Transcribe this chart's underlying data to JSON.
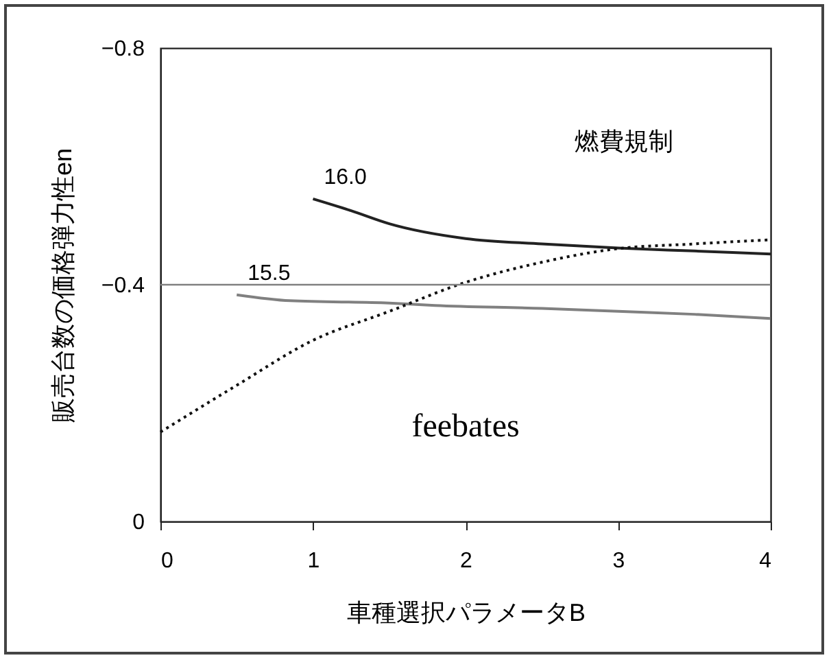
{
  "chart_data": {
    "type": "line",
    "xlabel": "車種選択パラメータB",
    "ylabel": "販売台数の価格弾力性en",
    "xlim": [
      0,
      4
    ],
    "xticks": [
      0,
      1,
      2,
      3,
      4
    ],
    "ylim": [
      0,
      -0.8
    ],
    "yticks": [
      {
        "value": -0.8,
        "label": "−0.8"
      },
      {
        "value": -0.4,
        "label": "−0.4"
      },
      {
        "value": 0,
        "label": "0"
      }
    ],
    "grid": false,
    "legend": false,
    "series": [
      {
        "name": "16.0",
        "color": "#222222",
        "line_style": "solid",
        "x": [
          1,
          1.25,
          1.5,
          2,
          2.5,
          3,
          3.5,
          4
        ],
        "values": [
          -0.545,
          -0.525,
          -0.503,
          -0.478,
          -0.469,
          -0.462,
          -0.457,
          -0.452
        ]
      },
      {
        "name": "15.5",
        "color": "#808080",
        "line_style": "solid",
        "x": [
          0.5,
          0.85,
          1.5,
          1.8,
          2.5,
          3,
          3.5,
          4
        ],
        "values": [
          -0.383,
          -0.373,
          -0.369,
          -0.365,
          -0.36,
          -0.355,
          -0.35,
          -0.343
        ]
      },
      {
        "color": "#111111",
        "line_style": "dotted",
        "x": [
          0,
          0.5,
          1,
          1.5,
          2,
          2.5,
          3,
          3.5,
          4
        ],
        "values": [
          -0.151,
          -0.23,
          -0.306,
          -0.355,
          -0.404,
          -0.438,
          -0.461,
          -0.469,
          -0.476
        ]
      }
    ],
    "ref_lines": [
      {
        "axis": "y",
        "value": -0.4,
        "color": "#808080"
      }
    ],
    "annotations": [
      "燃費規制",
      "feebates"
    ]
  }
}
